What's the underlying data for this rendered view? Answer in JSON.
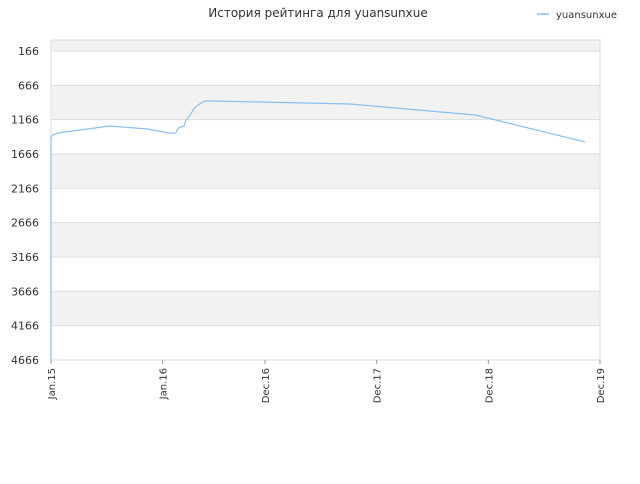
{
  "chart_data": {
    "type": "line",
    "title": "История рейтинга для yuansunxue",
    "x": [
      0,
      0,
      0.2,
      0.75,
      6.3,
      10.4,
      12.6,
      13.4,
      13.7,
      14.3,
      14.5,
      14.9,
      15.4,
      15.8,
      16.5,
      17.3,
      32.1,
      45.6,
      57.4
    ],
    "series": [
      {
        "name": "yuansunxue",
        "color": "#88bff0",
        "values": [
          4666,
          1418,
          1389,
          1360,
          1258,
          1302,
          1360,
          1360,
          1287,
          1258,
          1171,
          1113,
          996,
          952,
          894,
          894,
          938,
          1098,
          1491
        ]
      }
    ],
    "xlim": [
      0,
      59
    ],
    "xticks": [
      {
        "value": 0,
        "label": "Jan.15"
      },
      {
        "value": 12,
        "label": "Jan.16"
      },
      {
        "value": 23,
        "label": "Dec.16"
      },
      {
        "value": 35,
        "label": "Dec.17"
      },
      {
        "value": 47,
        "label": "Dec.18"
      },
      {
        "value": 59,
        "label": "Dec.19"
      }
    ],
    "ylim": [
      4666,
      6
    ],
    "yticks": [
      166,
      666,
      1166,
      1666,
      2166,
      2666,
      3166,
      3666,
      4166,
      4666
    ],
    "grid": true,
    "legend": "top-right"
  }
}
